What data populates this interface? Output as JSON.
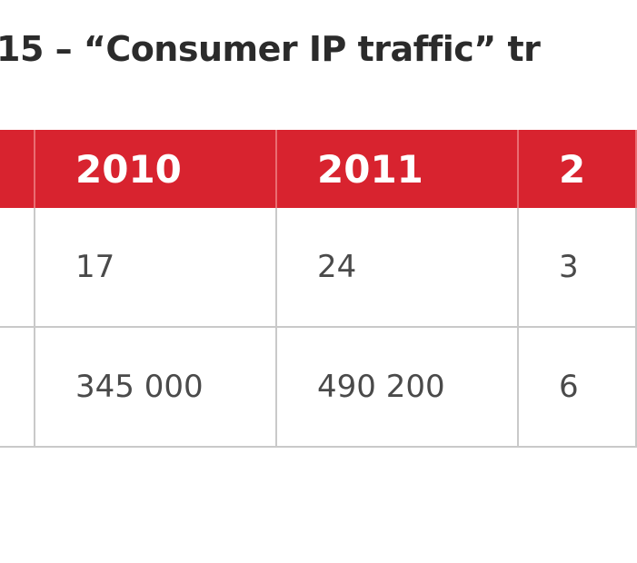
{
  "caption": "15 – “Consumer IP traffic” tr",
  "table": {
    "header": [
      "",
      "2010",
      "2011",
      "2"
    ],
    "rows": [
      [
        "",
        "17",
        "24",
        "3"
      ],
      [
        "",
        "345 000",
        "490 200",
        "6"
      ]
    ]
  },
  "colors": {
    "header_bg": "#d8232f",
    "header_text": "#ffffff",
    "grid": "#c9c9c9"
  }
}
